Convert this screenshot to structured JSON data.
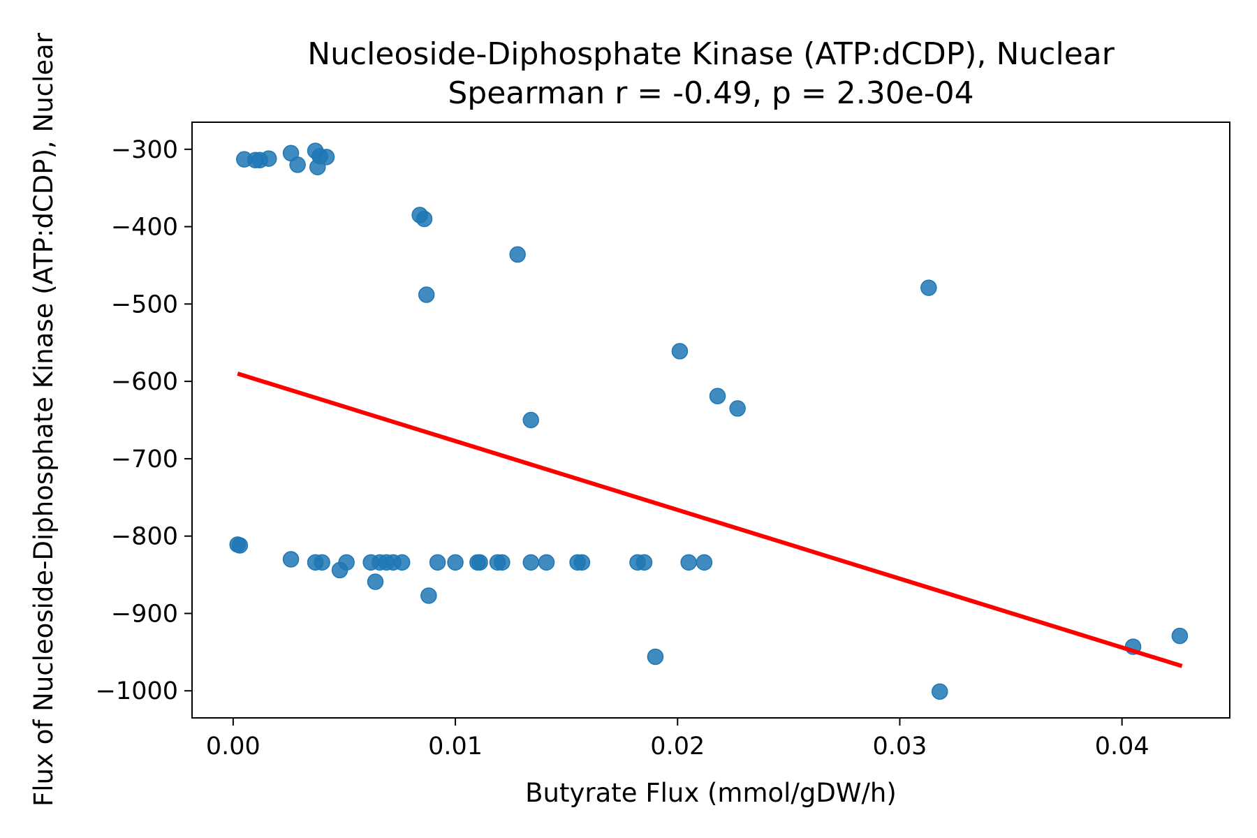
{
  "chart_data": {
    "type": "scatter",
    "title": "Nucleoside-Diphosphate Kinase (ATP:dCDP), Nuclear",
    "subtitle": "Spearman r = -0.49, p = 2.30e-04",
    "xlabel": "Butyrate Flux (mmol/gDW/h)",
    "ylabel": "Flux of Nucleoside-Diphosphate Kinase (ATP:dCDP), Nuclear",
    "xlim": [
      -0.00185,
      0.04485
    ],
    "ylim": [
      -1035,
      -265
    ],
    "x_ticks": [
      0.0,
      0.01,
      0.02,
      0.03,
      0.04
    ],
    "x_tick_labels": [
      "0.00",
      "0.01",
      "0.02",
      "0.03",
      "0.04"
    ],
    "y_ticks": [
      -300,
      -400,
      -500,
      -600,
      -700,
      -800,
      -900,
      -1000
    ],
    "y_tick_labels": [
      "−300",
      "−400",
      "−500",
      "−600",
      "−700",
      "−800",
      "−900",
      "−1000"
    ],
    "grid": false,
    "point_color": "#1f77b4",
    "trend_color": "#ff0000",
    "points": [
      {
        "x": 0.0005,
        "y": -313
      },
      {
        "x": 0.001,
        "y": -314
      },
      {
        "x": 0.0012,
        "y": -314
      },
      {
        "x": 0.0016,
        "y": -312
      },
      {
        "x": 0.0026,
        "y": -305
      },
      {
        "x": 0.0029,
        "y": -320
      },
      {
        "x": 0.0037,
        "y": -302
      },
      {
        "x": 0.0038,
        "y": -323
      },
      {
        "x": 0.0039,
        "y": -309
      },
      {
        "x": 0.0042,
        "y": -310
      },
      {
        "x": 0.0084,
        "y": -385
      },
      {
        "x": 0.0086,
        "y": -390
      },
      {
        "x": 0.0087,
        "y": -488
      },
      {
        "x": 0.0128,
        "y": -436
      },
      {
        "x": 0.0134,
        "y": -650
      },
      {
        "x": 0.0201,
        "y": -561
      },
      {
        "x": 0.0218,
        "y": -619
      },
      {
        "x": 0.0227,
        "y": -635
      },
      {
        "x": 0.0313,
        "y": -479
      },
      {
        "x": 0.0002,
        "y": -811
      },
      {
        "x": 0.0003,
        "y": -812
      },
      {
        "x": 0.0026,
        "y": -830
      },
      {
        "x": 0.0037,
        "y": -834
      },
      {
        "x": 0.004,
        "y": -834
      },
      {
        "x": 0.0048,
        "y": -844
      },
      {
        "x": 0.0051,
        "y": -834
      },
      {
        "x": 0.0062,
        "y": -834
      },
      {
        "x": 0.0064,
        "y": -859
      },
      {
        "x": 0.0066,
        "y": -834
      },
      {
        "x": 0.0069,
        "y": -834
      },
      {
        "x": 0.0072,
        "y": -834
      },
      {
        "x": 0.0076,
        "y": -834
      },
      {
        "x": 0.0088,
        "y": -877
      },
      {
        "x": 0.0092,
        "y": -834
      },
      {
        "x": 0.01,
        "y": -834
      },
      {
        "x": 0.011,
        "y": -834
      },
      {
        "x": 0.0111,
        "y": -834
      },
      {
        "x": 0.0119,
        "y": -834
      },
      {
        "x": 0.0121,
        "y": -834
      },
      {
        "x": 0.0134,
        "y": -834
      },
      {
        "x": 0.0141,
        "y": -834
      },
      {
        "x": 0.0155,
        "y": -834
      },
      {
        "x": 0.0157,
        "y": -834
      },
      {
        "x": 0.0182,
        "y": -834
      },
      {
        "x": 0.0185,
        "y": -834
      },
      {
        "x": 0.019,
        "y": -956
      },
      {
        "x": 0.0205,
        "y": -834
      },
      {
        "x": 0.0212,
        "y": -834
      },
      {
        "x": 0.0318,
        "y": -1001
      },
      {
        "x": 0.0405,
        "y": -943
      },
      {
        "x": 0.0426,
        "y": -929
      }
    ],
    "trend_line": {
      "x": [
        0.0002,
        0.0427
      ],
      "y": [
        -590,
        -968
      ]
    }
  }
}
